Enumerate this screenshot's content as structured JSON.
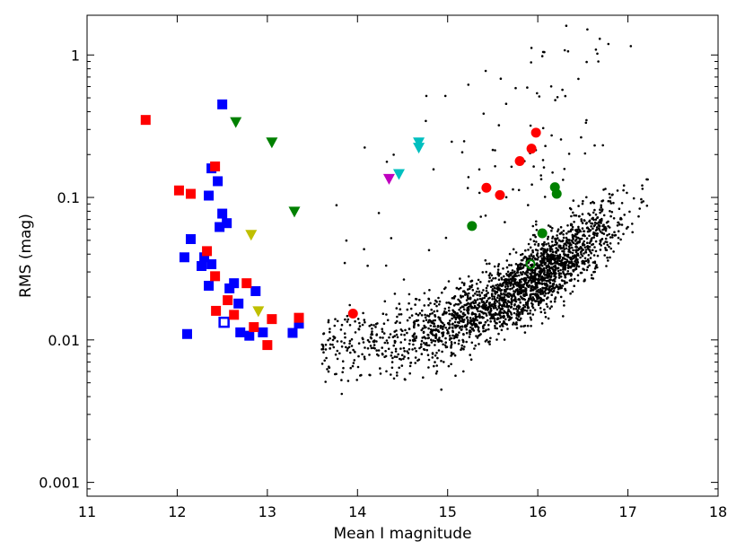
{
  "chart_data": {
    "type": "scatter",
    "title": "",
    "xlabel": "Mean I magnitude",
    "ylabel": "RMS (mag)",
    "xlim": [
      11,
      18
    ],
    "ylim": [
      0.0008,
      1.9
    ],
    "yscale": "log",
    "grid": false,
    "x_ticks": [
      11,
      12,
      13,
      14,
      15,
      16,
      17,
      18
    ],
    "x_tick_labels": [
      "11",
      "12",
      "13",
      "14",
      "15",
      "16",
      "17",
      "18"
    ],
    "y_ticks": [
      0.001,
      0.01,
      0.1,
      1
    ],
    "y_tick_labels": [
      "0.001",
      "0.01",
      "0.1",
      "1"
    ],
    "colors": {
      "blue": "#0000ff",
      "red": "#ff0000",
      "green": "#008000",
      "olive": "#bfbf00",
      "cyan": "#00bfbf",
      "magenta": "#bf00bf",
      "black": "#000000"
    },
    "background_cloud": {
      "marker": "dot",
      "color": "#000000",
      "description_count": 2500
    },
    "series": [
      {
        "marker": "square",
        "color": "#0000ff",
        "points": [
          [
            12.5,
            0.45
          ],
          [
            12.38,
            0.16
          ],
          [
            12.45,
            0.13
          ],
          [
            12.35,
            0.103
          ],
          [
            12.5,
            0.077
          ],
          [
            12.55,
            0.066
          ],
          [
            12.47,
            0.062
          ],
          [
            12.15,
            0.051
          ],
          [
            12.08,
            0.038
          ],
          [
            12.3,
            0.038
          ],
          [
            12.38,
            0.034
          ],
          [
            12.27,
            0.033
          ],
          [
            12.35,
            0.024
          ],
          [
            12.63,
            0.025
          ],
          [
            12.58,
            0.023
          ],
          [
            12.87,
            0.022
          ],
          [
            12.68,
            0.018
          ],
          [
            12.11,
            0.011
          ],
          [
            12.7,
            0.0113
          ],
          [
            12.8,
            0.0107
          ],
          [
            12.95,
            0.0113
          ],
          [
            13.28,
            0.0112
          ],
          [
            13.35,
            0.013
          ]
        ]
      },
      {
        "marker": "open-square",
        "color": "#0000ff",
        "points": [
          [
            12.52,
            0.0133
          ]
        ]
      },
      {
        "marker": "square",
        "color": "#ff0000",
        "points": [
          [
            11.65,
            0.35
          ],
          [
            12.02,
            0.112
          ],
          [
            12.15,
            0.106
          ],
          [
            12.42,
            0.165
          ],
          [
            12.33,
            0.042
          ],
          [
            12.42,
            0.028
          ],
          [
            12.43,
            0.016
          ],
          [
            12.56,
            0.019
          ],
          [
            12.63,
            0.015
          ],
          [
            12.77,
            0.025
          ],
          [
            12.85,
            0.0123
          ],
          [
            13.05,
            0.014
          ],
          [
            13.35,
            0.0143
          ],
          [
            13.0,
            0.0092
          ]
        ]
      },
      {
        "marker": "circle",
        "color": "#ff0000",
        "points": [
          [
            13.95,
            0.0153
          ],
          [
            15.43,
            0.117
          ],
          [
            15.58,
            0.104
          ],
          [
            15.8,
            0.18
          ],
          [
            15.93,
            0.22
          ],
          [
            15.98,
            0.285
          ]
        ]
      },
      {
        "marker": "circle",
        "color": "#008000",
        "points": [
          [
            15.27,
            0.063
          ],
          [
            16.05,
            0.056
          ],
          [
            16.19,
            0.118
          ],
          [
            16.21,
            0.106
          ]
        ]
      },
      {
        "marker": "open-circle",
        "color": "#008000",
        "points": [
          [
            15.92,
            0.034
          ]
        ]
      },
      {
        "marker": "triangle-down",
        "color": "#008000",
        "points": [
          [
            12.65,
            0.34
          ],
          [
            13.05,
            0.245
          ],
          [
            13.3,
            0.08
          ]
        ]
      },
      {
        "marker": "triangle-down",
        "color": "#bfbf00",
        "points": [
          [
            12.82,
            0.055
          ],
          [
            12.9,
            0.016
          ]
        ]
      },
      {
        "marker": "triangle-down",
        "color": "#00bfbf",
        "points": [
          [
            14.46,
            0.147
          ],
          [
            14.68,
            0.245
          ],
          [
            14.68,
            0.225
          ]
        ]
      },
      {
        "marker": "triangle-down",
        "color": "#bf00bf",
        "points": [
          [
            14.35,
            0.136
          ]
        ]
      }
    ]
  }
}
